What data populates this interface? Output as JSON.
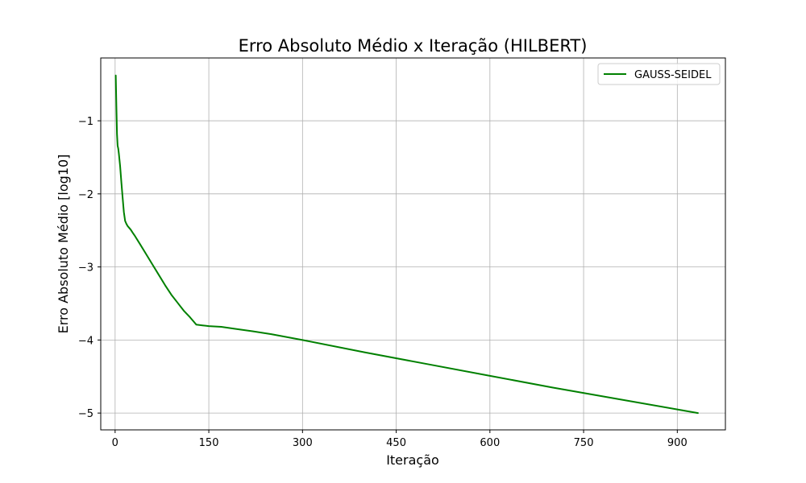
{
  "chart_data": {
    "type": "line",
    "title": "Erro Absoluto Médio x Iteração (HILBERT)",
    "xlabel": "Iteração",
    "ylabel": "Erro Absoluto Médio [log10]",
    "xlim": [
      -23,
      977
    ],
    "ylim": [
      -5.23,
      -0.14
    ],
    "xticks": [
      0,
      150,
      300,
      450,
      600,
      750,
      900
    ],
    "xtick_labels": [
      "0",
      "150",
      "300",
      "450",
      "600",
      "750",
      "900"
    ],
    "yticks": [
      -1,
      -2,
      -3,
      -4,
      -5
    ],
    "ytick_labels": [
      "−1",
      "−2",
      "−3",
      "−4",
      "−5"
    ],
    "grid": true,
    "legend_position": "top-right",
    "series": [
      {
        "name": "GAUSS-SEIDEL",
        "color": "#008000",
        "x": [
          1,
          2,
          3,
          4,
          5,
          6,
          8,
          10,
          12,
          14,
          16,
          18,
          20,
          22,
          25,
          28,
          32,
          40,
          50,
          60,
          70,
          80,
          90,
          100,
          110,
          120,
          125,
          130,
          140,
          150,
          170,
          190,
          220,
          250,
          300,
          400,
          500,
          600,
          700,
          800,
          900,
          933
        ],
        "values": [
          -0.38,
          -0.8,
          -1.18,
          -1.34,
          -1.38,
          -1.45,
          -1.62,
          -1.84,
          -2.05,
          -2.25,
          -2.37,
          -2.41,
          -2.44,
          -2.46,
          -2.49,
          -2.53,
          -2.58,
          -2.69,
          -2.83,
          -2.97,
          -3.11,
          -3.25,
          -3.38,
          -3.49,
          -3.6,
          -3.69,
          -3.74,
          -3.79,
          -3.8,
          -3.81,
          -3.82,
          -3.845,
          -3.88,
          -3.92,
          -4.0,
          -4.17,
          -4.33,
          -4.49,
          -4.65,
          -4.8,
          -4.95,
          -5.0
        ]
      }
    ]
  }
}
